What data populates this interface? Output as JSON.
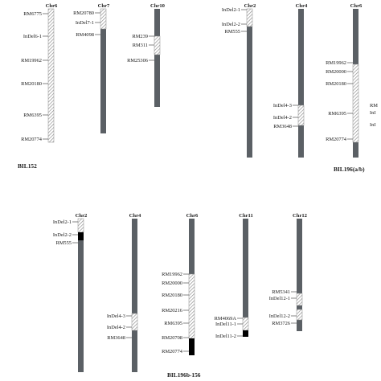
{
  "panels": [
    {
      "label": "BIL152",
      "chromosomes": [
        {
          "name": "Chr6",
          "markers": [
            "RM6775",
            "InDel6-1",
            "RM19962",
            "RM20180",
            "RM6395",
            "RM20774"
          ]
        },
        {
          "name": "Chr7",
          "markers": [
            "RM20780",
            "InDel7-1",
            "RM4098"
          ]
        },
        {
          "name": "Chr10",
          "markers": [
            "RM239",
            "RM311",
            "RM25306"
          ]
        }
      ]
    },
    {
      "label": "BIL196(a/b)",
      "chromosomes": [
        {
          "name": "Chr2",
          "markers": [
            "InDel2-1",
            "InDel2-2",
            "RM555"
          ]
        },
        {
          "name": "Chr4",
          "markers": [
            "InDel4-3",
            "InDel4-2",
            "RM3648"
          ]
        },
        {
          "name": "Chr6",
          "markers": [
            "RM19962",
            "RM20000",
            "RM20180",
            "RM6395",
            "RM20774"
          ],
          "truncated_labels": [
            "RM",
            "InI",
            "InI"
          ]
        }
      ]
    },
    {
      "label": "BIL196b-156",
      "chromosomes": [
        {
          "name": "Chr2",
          "markers": [
            "InDel2-1",
            "InDel2-2",
            "RM555"
          ]
        },
        {
          "name": "Chr4",
          "markers": [
            "InDel4-3",
            "InDel4-2",
            "RM3648"
          ]
        },
        {
          "name": "Chr6",
          "markers": [
            "RM19962",
            "RM20000",
            "RM20180",
            "RM20216",
            "RM6395",
            "RM20708",
            "RM20774"
          ]
        },
        {
          "name": "Chr11",
          "markers": [
            "RM4069A",
            "InDel11-1",
            "InDel11-2"
          ]
        },
        {
          "name": "Chr12",
          "markers": [
            "RM5341",
            "InDel12-1",
            "InDel12-2",
            "RM3726"
          ]
        }
      ]
    }
  ],
  "colors": {
    "chromosome": "#5b6065",
    "homozygous_segment": "#000000",
    "heterozygous_hatch": "#8a8a8a",
    "text": "#1a1a1a"
  }
}
